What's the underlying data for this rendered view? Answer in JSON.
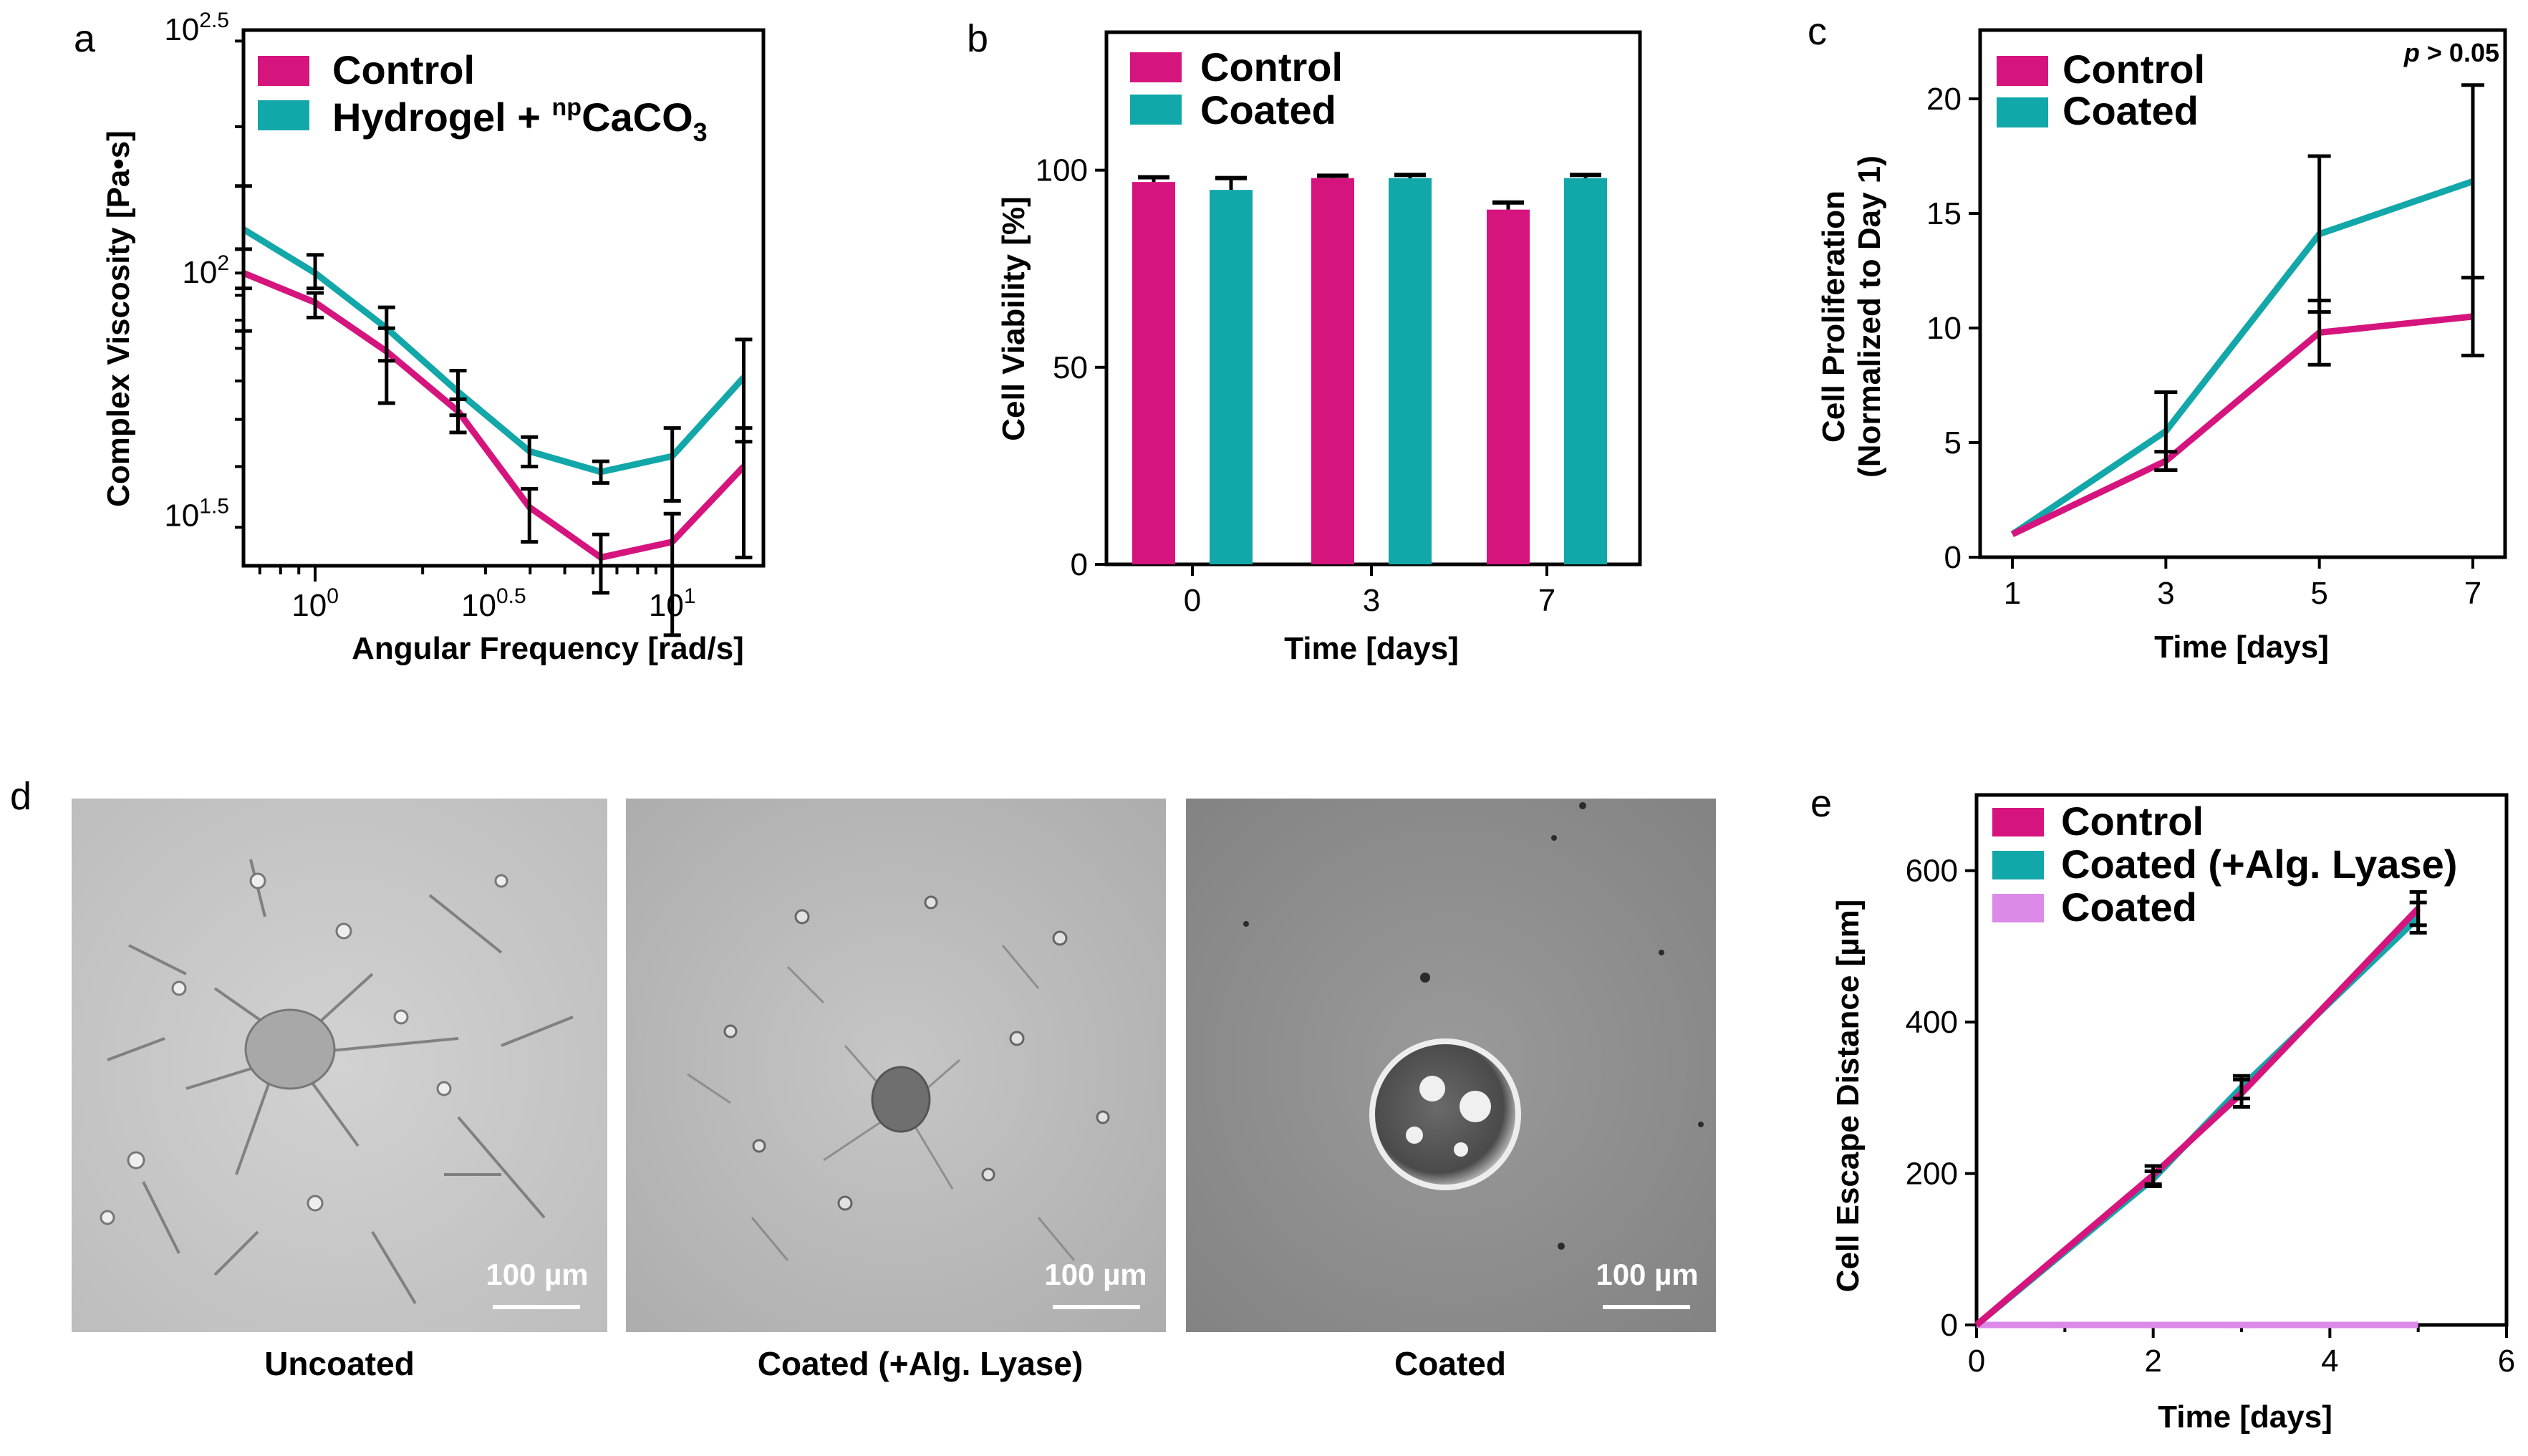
{
  "colors": {
    "control": "#d6147e",
    "coated": "#12a7a9",
    "coated_lavender": "#dc8ae8",
    "micrograph_1": "#c9c9c9",
    "micrograph_2": "#bcbcbc",
    "micrograph_3": "#8f8f8f"
  },
  "panels": {
    "a": "a",
    "b": "b",
    "c": "c",
    "d": "d",
    "e": "e"
  },
  "micrographs": {
    "uncoated_label": "Uncoated",
    "lyase_label": "Coated (+Alg. Lyase)",
    "coated_label": "Coated",
    "scale_bar_text": "100 µm"
  },
  "chart_data": [
    {
      "id": "a",
      "type": "line",
      "xlabel": "Angular Frequency [rad/s]",
      "ylabel": "Complex Viscosity [Pa•s]",
      "x_scale": "log",
      "y_scale": "log",
      "xlim": [
        0.63,
        18
      ],
      "ylim": [
        25,
        316
      ],
      "x_tick_labels": [
        {
          "value": 1,
          "base": "10",
          "exp": "0"
        },
        {
          "value": 3.162,
          "base": "10",
          "exp": "0.5"
        },
        {
          "value": 10,
          "base": "10",
          "exp": "1"
        }
      ],
      "y_tick_labels": [
        {
          "value": 31.62,
          "base": "10",
          "exp": "1.5"
        },
        {
          "value": 100,
          "base": "10",
          "exp": "2"
        },
        {
          "value": 316.2,
          "base": "10",
          "exp": "2.5"
        }
      ],
      "legend": {
        "position": "top",
        "entries": [
          {
            "name": "Control"
          },
          {
            "name_prefix": "Hydrogel + ",
            "sup": "np",
            "name_main": "CaCO",
            "sub": "3"
          }
        ]
      },
      "x": [
        0.63,
        1.0,
        1.585,
        2.512,
        3.981,
        6.31,
        10.0,
        15.85
      ],
      "series": [
        {
          "name": "Control",
          "color_key": "control",
          "values": [
            100,
            87,
            69,
            52,
            33,
            26,
            28,
            40
          ],
          "err_low": [
            24,
            6,
            15,
            5,
            5,
            4,
            10,
            14
          ],
          "err_high": [
            12,
            4,
            8,
            3,
            3,
            3,
            4,
            8
          ]
        },
        {
          "name": "Hydrogel + npCaCO3",
          "color_key": "coated",
          "values": [
            123,
            100,
            77,
            57,
            43,
            39,
            42,
            61
          ],
          "err_low": [
            30,
            7,
            11,
            6,
            3,
            2,
            8,
            16
          ],
          "err_high": [
            28,
            9,
            8,
            6,
            3,
            2,
            6,
            12
          ]
        }
      ]
    },
    {
      "id": "b",
      "type": "bar",
      "xlabel": "Time [days]",
      "ylabel": "Cell Viability [%]",
      "categories": [
        "0",
        "3",
        "7"
      ],
      "ylim": [
        0,
        135
      ],
      "y_ticks": [
        0,
        50,
        100
      ],
      "legend": {
        "position": "top-left",
        "entries": [
          "Control",
          "Coated"
        ]
      },
      "series": [
        {
          "name": "Control",
          "color_key": "control",
          "values": [
            97,
            98,
            90
          ],
          "err": [
            1.2,
            0.6,
            1.8
          ]
        },
        {
          "name": "Coated",
          "color_key": "coated",
          "values": [
            95,
            98,
            98
          ],
          "err": [
            3,
            0.8,
            0.8
          ]
        }
      ]
    },
    {
      "id": "c",
      "type": "line",
      "xlabel": "Time [days]",
      "ylabel_line1": "Cell Proliferation",
      "ylabel_line2": "(Normalized to Day 1)",
      "annotation_italic": "p",
      "annotation_rest": " > 0.05",
      "x": [
        1,
        3,
        5,
        7
      ],
      "xlim": [
        1,
        7
      ],
      "ylim": [
        0,
        23
      ],
      "x_ticks": [
        1,
        3,
        5,
        7
      ],
      "y_ticks": [
        0,
        5,
        10,
        15,
        20
      ],
      "legend": {
        "position": "top-left",
        "entries": [
          "Control",
          "Coated"
        ]
      },
      "series": [
        {
          "name": "Control",
          "color_key": "control",
          "values": [
            1.0,
            4.2,
            9.8,
            10.5
          ],
          "err": [
            0,
            0.4,
            1.4,
            1.7
          ]
        },
        {
          "name": "Coated",
          "color_key": "coated",
          "values": [
            1.0,
            5.5,
            14.1,
            16.4
          ],
          "err": [
            0,
            1.7,
            3.4,
            4.2
          ]
        }
      ]
    },
    {
      "id": "e",
      "type": "line",
      "xlabel": "Time [days]",
      "ylabel": "Cell Escape Distance [µm]",
      "x": [
        0,
        2,
        3,
        5
      ],
      "xlim": [
        0,
        6
      ],
      "ylim": [
        0,
        700
      ],
      "x_ticks": [
        0,
        2,
        4,
        6
      ],
      "y_ticks": [
        0,
        200,
        400,
        600
      ],
      "legend": {
        "position": "top-left",
        "entries": [
          "Control",
          "Coated (+Alg. Lyase)",
          "Coated"
        ]
      },
      "series": [
        {
          "name": "Control",
          "color_key": "control",
          "values": [
            0,
            198,
            306,
            550
          ],
          "err": [
            0,
            12,
            18,
            22
          ]
        },
        {
          "name": "Coated (+Alg. Lyase)",
          "color_key": "coated",
          "values": [
            0,
            193,
            314,
            538
          ],
          "err": [
            0,
            10,
            15,
            20
          ]
        },
        {
          "name": "Coated",
          "color_key": "coated_lavender",
          "values": [
            0,
            0,
            0,
            0
          ],
          "err": [
            0,
            0,
            0,
            0
          ]
        }
      ]
    }
  ]
}
